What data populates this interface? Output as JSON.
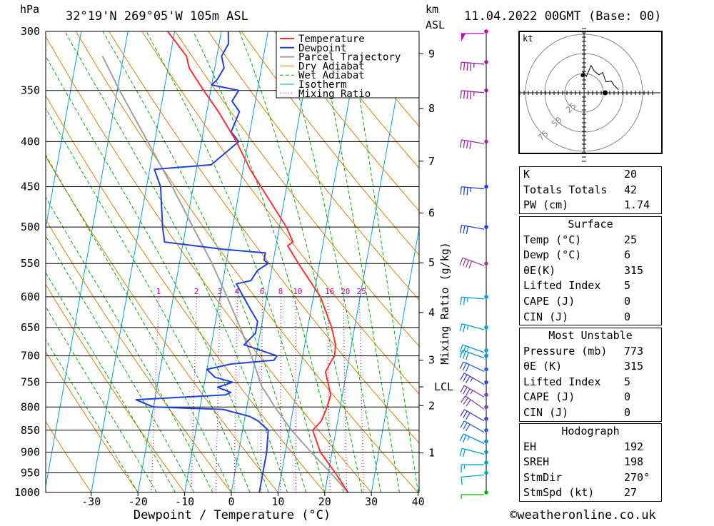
{
  "header": {
    "location": "32°19'N 269°05'W 105m ASL",
    "datetime": "11.04.2022 00GMT (Base: 00)",
    "hpa_label": "hPa",
    "km_label": "km",
    "asl_label": "ASL",
    "xlabel": "Dewpoint / Temperature (°C)",
    "mixing_ratio_label": "Mixing Ratio (g/kg)",
    "lcl_label": "LCL",
    "kt_label": "kt",
    "credit": "©weatheronline.co.uk"
  },
  "chart_data": {
    "type": "line",
    "title": "32°19'N 269°05'W 105m ASL",
    "xlabel": "Dewpoint / Temperature (°C)",
    "ylabel": "hPa",
    "xlim": [
      -40,
      40
    ],
    "ylim": [
      1000,
      300
    ],
    "y_scale": "log",
    "pressure_ticks": [
      300,
      350,
      400,
      450,
      500,
      550,
      600,
      650,
      700,
      750,
      800,
      850,
      900,
      950,
      1000
    ],
    "temp_ticks": [
      -30,
      -20,
      -10,
      0,
      10,
      20,
      30,
      40
    ],
    "km_ticks": [
      {
        "label": "1",
        "p": 902
      },
      {
        "label": "2",
        "p": 797
      },
      {
        "label": "3",
        "p": 708
      },
      {
        "label": "LCL",
        "p": 759
      },
      {
        "label": "4",
        "p": 625
      },
      {
        "label": "5",
        "p": 549
      },
      {
        "label": "6",
        "p": 482
      },
      {
        "label": "7",
        "p": 421
      },
      {
        "label": "8",
        "p": 367
      },
      {
        "label": "9",
        "p": 318
      }
    ],
    "mixing_ratio_labels": [
      "1",
      "2",
      "3",
      "4",
      "6",
      "8",
      "10",
      "16",
      "20",
      "25"
    ],
    "legend": [
      "Temperature",
      "Dewpoint",
      "Parcel Trajectory",
      "Dry Adiabat",
      "Wet Adiabat",
      "Isotherm",
      "Mixing Ratio"
    ],
    "legend_position": "top-right",
    "colors": {
      "temperature": "#ff3030",
      "dewpoint": "#2040e0",
      "parcel": "#a0a0a0",
      "dry_adiabat": "#e08000",
      "wet_adiabat": "#00b000",
      "isotherm": "#00a0e0",
      "mixing_ratio": "#d0008a"
    },
    "series": [
      {
        "name": "Temperature",
        "points": [
          [
            1000,
            25
          ],
          [
            950,
            21.5
          ],
          [
            900,
            17.5
          ],
          [
            850,
            15
          ],
          [
            830,
            16.5
          ],
          [
            800,
            17.2
          ],
          [
            775,
            17.5
          ],
          [
            750,
            16.4
          ],
          [
            730,
            15.5
          ],
          [
            710,
            16.3
          ],
          [
            700,
            16.8
          ],
          [
            680,
            16.6
          ],
          [
            650,
            15.1
          ],
          [
            600,
            11.5
          ],
          [
            550,
            5.5
          ],
          [
            525,
            2.5
          ],
          [
            520,
            3.5
          ],
          [
            500,
            1.5
          ],
          [
            450,
            -5.5
          ],
          [
            430,
            -8.5
          ],
          [
            400,
            -12.5
          ],
          [
            370,
            -17.5
          ],
          [
            350,
            -21.5
          ],
          [
            330,
            -25.5
          ],
          [
            320,
            -26.5
          ],
          [
            300,
            -31.5
          ]
        ]
      },
      {
        "name": "Dewpoint",
        "points": [
          [
            1000,
            6
          ],
          [
            950,
            6
          ],
          [
            900,
            6
          ],
          [
            850,
            5.5
          ],
          [
            830,
            3
          ],
          [
            820,
            1
          ],
          [
            805,
            -5
          ],
          [
            800,
            -20
          ],
          [
            785,
            -24
          ],
          [
            775,
            -5
          ],
          [
            770,
            -4
          ],
          [
            760,
            -7
          ],
          [
            750,
            -4
          ],
          [
            740,
            -8
          ],
          [
            725,
            -10
          ],
          [
            715,
            -5
          ],
          [
            708,
            4
          ],
          [
            700,
            4.5
          ],
          [
            680,
            -3
          ],
          [
            660,
            -1
          ],
          [
            640,
            -1
          ],
          [
            620,
            -3
          ],
          [
            600,
            -5
          ],
          [
            580,
            -7
          ],
          [
            575,
            -4
          ],
          [
            560,
            -3
          ],
          [
            550,
            -1
          ],
          [
            545,
            -2
          ],
          [
            535,
            -2
          ],
          [
            530,
            -11
          ],
          [
            520,
            -24
          ],
          [
            500,
            -25
          ],
          [
            450,
            -27
          ],
          [
            430,
            -29
          ],
          [
            425,
            -17
          ],
          [
            400,
            -12
          ],
          [
            390,
            -14
          ],
          [
            370,
            -13
          ],
          [
            360,
            -15
          ],
          [
            350,
            -14
          ],
          [
            345,
            -20
          ],
          [
            340,
            -19
          ],
          [
            330,
            -18
          ],
          [
            320,
            -19
          ],
          [
            310,
            -18
          ],
          [
            300,
            -18.5
          ]
        ]
      },
      {
        "name": "Parcel Trajectory",
        "points": [
          [
            1000,
            25
          ],
          [
            950,
            20.5
          ],
          [
            900,
            15.5
          ],
          [
            850,
            10.5
          ],
          [
            800,
            6
          ],
          [
            770,
            3.5
          ],
          [
            760,
            2.5
          ],
          [
            700,
            -1
          ],
          [
            650,
            -4.5
          ],
          [
            600,
            -8.5
          ],
          [
            550,
            -13
          ],
          [
            500,
            -18.5
          ],
          [
            450,
            -24.5
          ],
          [
            400,
            -31.5
          ],
          [
            350,
            -39.5
          ],
          [
            320,
            -44.5
          ]
        ]
      }
    ],
    "wind_barbs": [
      {
        "p": 1000,
        "dir": 270,
        "spd": 5,
        "color": "#00b000"
      },
      {
        "p": 950,
        "dir": 275,
        "spd": 10,
        "color": "#00b0a0"
      },
      {
        "p": 925,
        "dir": 270,
        "spd": 15,
        "color": "#00a0c0"
      },
      {
        "p": 900,
        "dir": 255,
        "spd": 20,
        "color": "#00a0d0"
      },
      {
        "p": 875,
        "dir": 245,
        "spd": 25,
        "color": "#0090e0"
      },
      {
        "p": 850,
        "dir": 240,
        "spd": 30,
        "color": "#2060e0"
      },
      {
        "p": 825,
        "dir": 240,
        "spd": 30,
        "color": "#4040d0"
      },
      {
        "p": 800,
        "dir": 235,
        "spd": 30,
        "color": "#8040c0"
      },
      {
        "p": 775,
        "dir": 240,
        "spd": 35,
        "color": "#8040c0"
      },
      {
        "p": 750,
        "dir": 240,
        "spd": 35,
        "color": "#4040d0"
      },
      {
        "p": 725,
        "dir": 245,
        "spd": 30,
        "color": "#2060e0"
      },
      {
        "p": 700,
        "dir": 250,
        "spd": 30,
        "color": "#0090e0"
      },
      {
        "p": 690,
        "dir": 250,
        "spd": 25,
        "color": "#00a0d0"
      },
      {
        "p": 650,
        "dir": 255,
        "spd": 25,
        "color": "#00a0d0"
      },
      {
        "p": 600,
        "dir": 265,
        "spd": 25,
        "color": "#00a0e0"
      },
      {
        "p": 550,
        "dir": 250,
        "spd": 40,
        "color": "#a040a0"
      },
      {
        "p": 500,
        "dir": 260,
        "spd": 30,
        "color": "#2040e0"
      },
      {
        "p": 450,
        "dir": 265,
        "spd": 35,
        "color": "#2040e0"
      },
      {
        "p": 400,
        "dir": 260,
        "spd": 40,
        "color": "#a030b0"
      },
      {
        "p": 350,
        "dir": 265,
        "spd": 45,
        "color": "#a020a0"
      },
      {
        "p": 325,
        "dir": 265,
        "spd": 45,
        "color": "#a020a0"
      },
      {
        "p": 300,
        "dir": 270,
        "spd": 50,
        "color": "#c000c0"
      }
    ],
    "hodograph": {
      "ring_labels": [
        "25",
        "50",
        "75"
      ],
      "points": [
        [
          -2,
          27
        ],
        [
          3,
          21
        ],
        [
          9,
          35
        ],
        [
          13,
          28
        ],
        [
          19,
          23
        ],
        [
          24,
          26
        ],
        [
          28,
          14
        ],
        [
          35,
          15
        ],
        [
          38,
          10
        ],
        [
          44,
          4
        ]
      ]
    },
    "grid": true
  },
  "tables": {
    "indices": [
      {
        "label": "K",
        "value": "20"
      },
      {
        "label": "Totals Totals",
        "value": "42"
      },
      {
        "label": "PW (cm)",
        "value": "1.74"
      }
    ],
    "surface": {
      "title": "Surface",
      "rows": [
        {
          "label": "Temp (°C)",
          "value": "25"
        },
        {
          "label": "Dewp (°C)",
          "value": "6"
        },
        {
          "label": "θE(K)",
          "value": "315"
        },
        {
          "label": "Lifted Index",
          "value": "5"
        },
        {
          "label": "CAPE (J)",
          "value": "0"
        },
        {
          "label": "CIN (J)",
          "value": "0"
        }
      ]
    },
    "most_unstable": {
      "title": "Most Unstable",
      "rows": [
        {
          "label": "Pressure (mb)",
          "value": "773"
        },
        {
          "label": "θE (K)",
          "value": "315"
        },
        {
          "label": "Lifted Index",
          "value": "5"
        },
        {
          "label": "CAPE (J)",
          "value": "0"
        },
        {
          "label": "CIN (J)",
          "value": "0"
        }
      ]
    },
    "hodograph": {
      "title": "Hodograph",
      "rows": [
        {
          "label": "EH",
          "value": "192"
        },
        {
          "label": "SREH",
          "value": "198"
        },
        {
          "label": "StmDir",
          "value": "270°"
        },
        {
          "label": "StmSpd (kt)",
          "value": "27"
        }
      ]
    }
  }
}
